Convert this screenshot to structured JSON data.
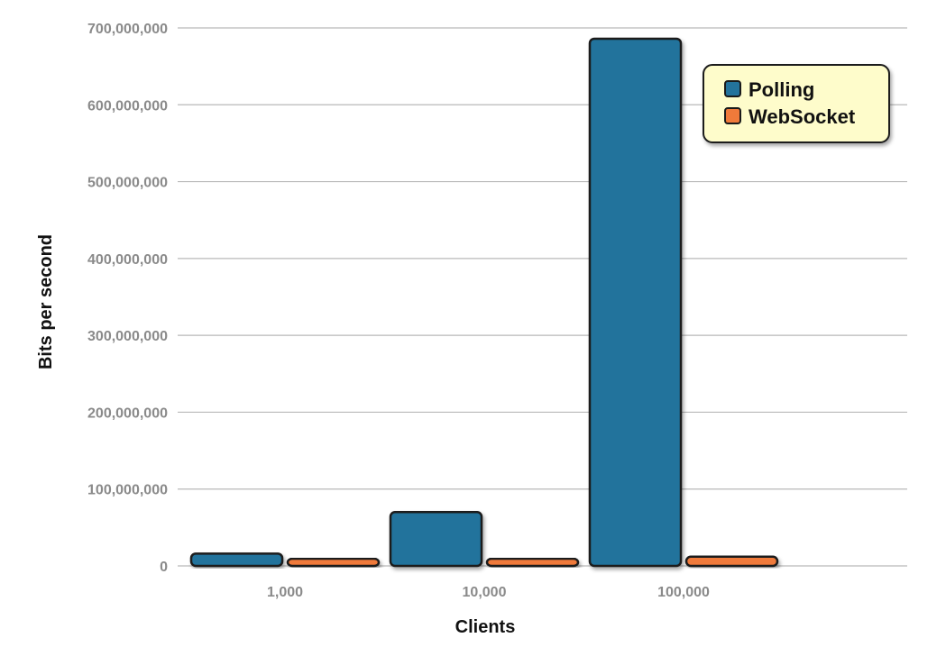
{
  "chart_data": {
    "type": "bar",
    "title": "",
    "xlabel": "Clients",
    "ylabel": "Bits per second",
    "categories": [
      "1,000",
      "10,000",
      "100,000"
    ],
    "series": [
      {
        "name": "Polling",
        "color": "#23739c",
        "values": [
          16000000,
          70000000,
          686000000
        ]
      },
      {
        "name": "WebSocket",
        "color": "#f07a3a",
        "values": [
          5000000,
          8000000,
          12000000
        ]
      }
    ],
    "ylim": [
      0,
      700000000
    ],
    "yticks": [
      "0",
      "100,000,000",
      "200,000,000",
      "300,000,000",
      "400,000,000",
      "500,000,000",
      "600,000,000",
      "700,000,000"
    ],
    "grid": true,
    "legend_position": "top-right",
    "legend_background": "#fefccb"
  }
}
